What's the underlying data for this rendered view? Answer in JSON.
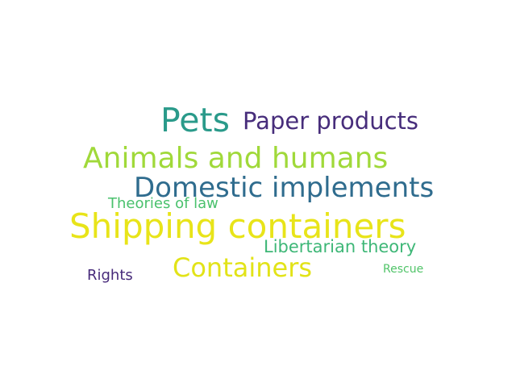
{
  "word_cloud": {
    "words": [
      {
        "text": "Pets",
        "color": "#2a9a8a"
      },
      {
        "text": "Paper products",
        "color": "#472d7b"
      },
      {
        "text": "Animals and humans",
        "color": "#a0d93a"
      },
      {
        "text": "Domestic implements",
        "color": "#2f6c8e"
      },
      {
        "text": "Theories of law",
        "color": "#4ac16d"
      },
      {
        "text": "Shipping containers",
        "color": "#e8e419"
      },
      {
        "text": "Libertarian theory",
        "color": "#3eb777"
      },
      {
        "text": "Containers",
        "color": "#e2e318"
      },
      {
        "text": "Rescue",
        "color": "#51c469"
      },
      {
        "text": "Rights",
        "color": "#472a7a"
      }
    ]
  }
}
